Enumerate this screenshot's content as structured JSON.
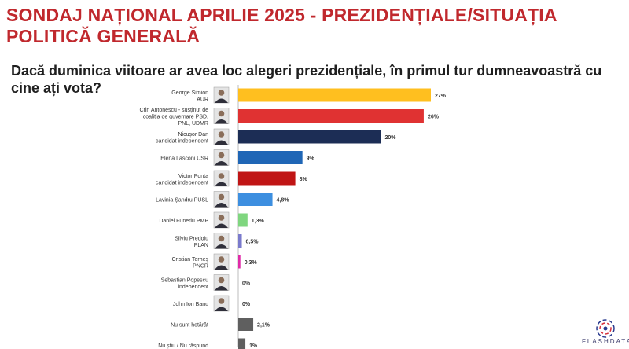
{
  "header": {
    "title": "SONDAJ NAȚIONAL APRILIE 2025 - PREZIDENȚIALE/SITUAȚIA POLITICĂ GENERALĂ",
    "question": "Dacă duminica viitoare ar avea loc alegeri prezidențiale, în primul tur dumneavoastră cu cine ați vota?"
  },
  "brand": {
    "name": "FLASHDATA"
  },
  "chart_data": {
    "type": "bar",
    "orientation": "horizontal",
    "categories": [
      [
        "George Simion",
        "AUR"
      ],
      [
        "Crin Antonescu - susținut de",
        "coaliția de guvernare PSD,",
        "PNL, UDMR"
      ],
      [
        "Nicușor Dan",
        "candidat independent"
      ],
      [
        "Elena Lasconi USR"
      ],
      [
        "Victor Ponta",
        "candidat independent"
      ],
      [
        "Lavinia Șandru PUSL"
      ],
      [
        "Daniel Funeriu PMP"
      ],
      [
        "Silviu Predoiu",
        "PLAN"
      ],
      [
        "Cristian Terheș",
        "PNCR"
      ],
      [
        "Sebastian Popescu",
        "independent"
      ],
      [
        "John Ion Banu"
      ],
      [
        "Nu sunt hotărât"
      ],
      [
        "Nu știu / Nu răspund"
      ]
    ],
    "values": [
      27,
      26,
      20,
      9,
      8,
      4.8,
      1.3,
      0.5,
      0.3,
      0,
      0,
      2.1,
      1
    ],
    "value_labels": [
      "27%",
      "26%",
      "20%",
      "9%",
      "8%",
      "4,8%",
      "1,3%",
      "0,5%",
      "0,3%",
      "0%",
      "0%",
      "2,1%",
      "1%"
    ],
    "colors": [
      "#ffbf1f",
      "#e03232",
      "#1c2d55",
      "#1f66b6",
      "#c01515",
      "#3d8fe0",
      "#7fd67f",
      "#7a7acc",
      "#e02aa8",
      "#cccccc",
      "#cccccc",
      "#5f5f5f",
      "#5f5f5f"
    ],
    "has_photo": [
      true,
      true,
      true,
      true,
      true,
      true,
      true,
      true,
      true,
      true,
      true,
      false,
      false
    ],
    "xlim": [
      0,
      27
    ],
    "grid": false,
    "legend": "none"
  }
}
